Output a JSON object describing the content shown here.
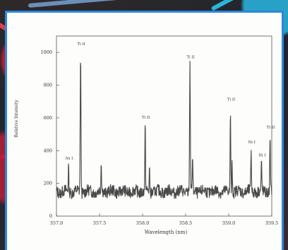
{
  "screen": {
    "card_border_color": "#2f87d7",
    "background_accent_red": "#c01a30",
    "background_accent_blue": "#27afd7"
  },
  "chart_data": {
    "type": "line",
    "title": "",
    "xlabel": "Wavelength (nm)",
    "ylabel": "Relative Intensity",
    "xlim": [
      357,
      359.5
    ],
    "ylim": [
      0,
      1100
    ],
    "x_ticks": [
      357.0,
      357.5,
      358.0,
      358.5,
      359.0,
      359.5
    ],
    "x_tick_labels": [
      "357.0",
      "357.5",
      "358.0",
      "358.5",
      "359.0",
      "359.5"
    ],
    "y_ticks": [
      0,
      200,
      400,
      600,
      800,
      1000
    ],
    "y_tick_labels": [
      "0",
      "200",
      "400",
      "600",
      "800",
      "1000"
    ],
    "grid": false,
    "legend": "none",
    "baseline": 150,
    "peaks": [
      {
        "x": 357.14,
        "y": 310,
        "label": "Ni I"
      },
      {
        "x": 357.28,
        "y": 1010,
        "label": "Ti II"
      },
      {
        "x": 357.52,
        "y": 335,
        "label": ""
      },
      {
        "x": 358.03,
        "y": 560,
        "label": "Ti II"
      },
      {
        "x": 358.08,
        "y": 290,
        "label": ""
      },
      {
        "x": 358.55,
        "y": 930,
        "label": "Ti II"
      },
      {
        "x": 358.58,
        "y": 360,
        "label": ""
      },
      {
        "x": 359.02,
        "y": 670,
        "label": "Ti II"
      },
      {
        "x": 359.04,
        "y": 320,
        "label": ""
      },
      {
        "x": 359.26,
        "y": 410,
        "label": "Ni I"
      },
      {
        "x": 359.38,
        "y": 330,
        "label": "Ni I"
      },
      {
        "x": 359.48,
        "y": 500,
        "label": "Ti II"
      }
    ]
  }
}
